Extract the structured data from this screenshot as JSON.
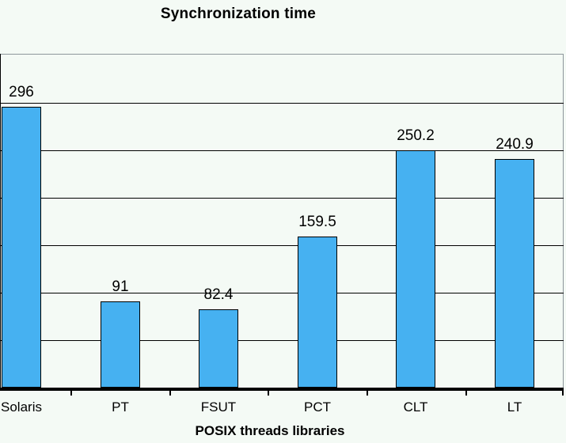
{
  "chart_data": {
    "type": "bar",
    "title": "Synchronization time",
    "xlabel": "POSIX threads libraries",
    "ylabel": "",
    "categories": [
      "Solaris",
      "PT",
      "FSUT",
      "PCT",
      "CLT",
      "LT"
    ],
    "values": [
      296,
      91,
      82.4,
      159.5,
      250.2,
      240.9
    ],
    "value_labels": [
      "296",
      "91",
      "82.4",
      "159.5",
      "250.2",
      "240.9"
    ],
    "series": [
      {
        "name": "Synchronization time",
        "values": [
          296,
          91,
          82.4,
          159.5,
          250.2,
          240.9
        ]
      }
    ],
    "ylim": [
      0,
      350
    ],
    "gridline_step": 50,
    "grid": true,
    "legend": "none",
    "y_axis_tick_labels_visible": false,
    "colors": {
      "bar_fill": "#46b1f1",
      "bar_border": "#000000",
      "gridline": "#000000",
      "plot_border": "#8d969b",
      "background": "#f4faf5",
      "text": "#000000"
    }
  }
}
